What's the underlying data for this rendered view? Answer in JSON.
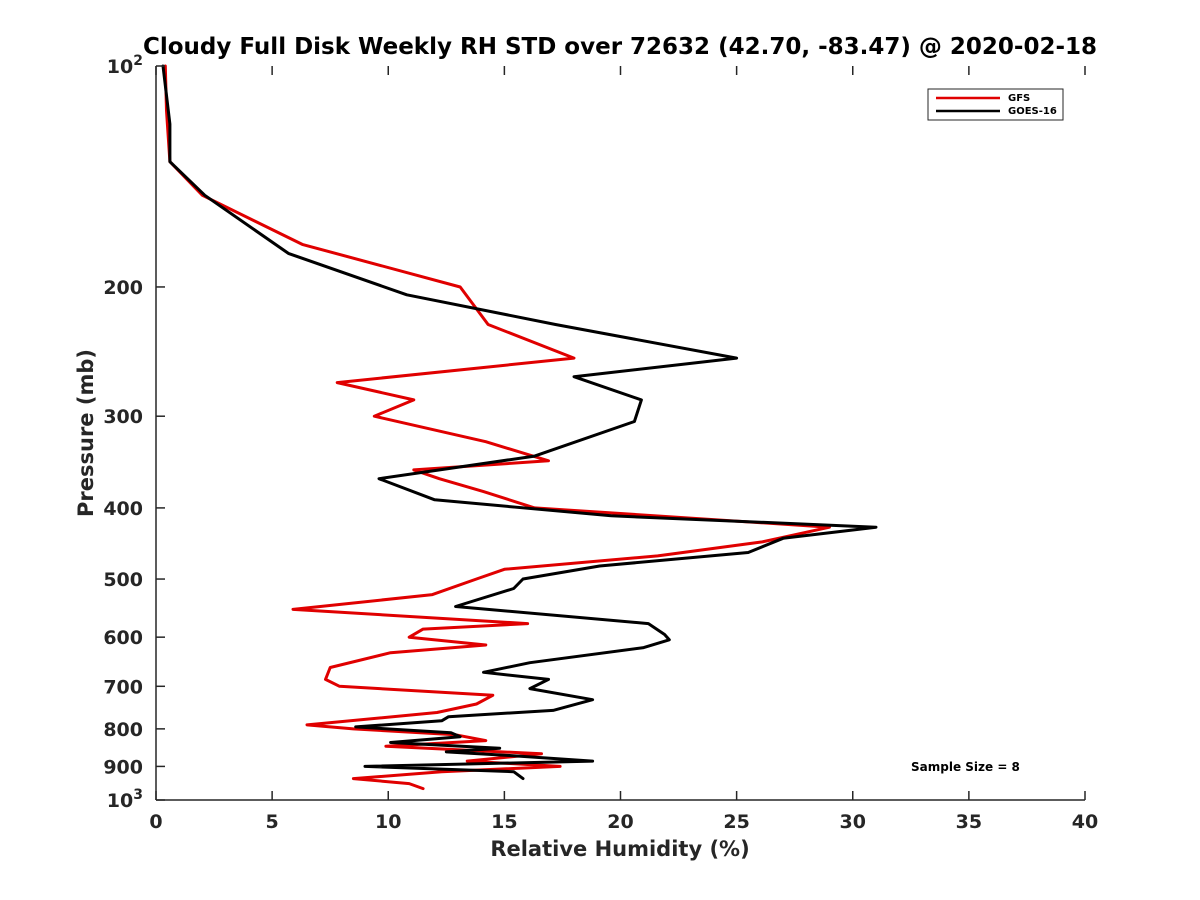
{
  "chart_data": {
    "type": "line",
    "title": "Cloudy Full Disk Weekly RH STD over 72632 (42.70, -83.47) @ 2020-02-18",
    "xlabel": "Relative Humidity (%)",
    "ylabel": "Pressure (mb)",
    "xlim": [
      0,
      40
    ],
    "ylim": [
      100,
      1000
    ],
    "y_scale": "log",
    "y_reversed": true,
    "x_ticks": [
      "0",
      "5",
      "10",
      "15",
      "20",
      "25",
      "30",
      "35",
      "40"
    ],
    "y_ticks": [
      {
        "value": 100,
        "base": "10",
        "exp": "2"
      },
      {
        "value": 200,
        "label": "200"
      },
      {
        "value": 300,
        "label": "300"
      },
      {
        "value": 400,
        "label": "400"
      },
      {
        "value": 500,
        "label": "500"
      },
      {
        "value": 600,
        "label": "600"
      },
      {
        "value": 700,
        "label": "700"
      },
      {
        "value": 800,
        "label": "800"
      },
      {
        "value": 900,
        "label": "900"
      },
      {
        "value": 1000,
        "base": "10",
        "exp": "3"
      }
    ],
    "legend_position": "top-right",
    "grid": false,
    "annotation": "Sample Size = 8",
    "series": [
      {
        "name": "GFS",
        "color": "#e00000",
        "points": [
          [
            0.4,
            100
          ],
          [
            0.45,
            115
          ],
          [
            0.6,
            135
          ],
          [
            2.0,
            150
          ],
          [
            6.3,
            175
          ],
          [
            13.1,
            200
          ],
          [
            14.3,
            225
          ],
          [
            18.0,
            250
          ],
          [
            7.8,
            270
          ],
          [
            11.1,
            285
          ],
          [
            9.4,
            300
          ],
          [
            14.2,
            325
          ],
          [
            16.9,
            345
          ],
          [
            11.1,
            355
          ],
          [
            12.2,
            365
          ],
          [
            14.1,
            380
          ],
          [
            16.3,
            400
          ],
          [
            29.0,
            425
          ],
          [
            26.1,
            445
          ],
          [
            21.6,
            465
          ],
          [
            15.0,
            485
          ],
          [
            13.8,
            500
          ],
          [
            11.9,
            525
          ],
          [
            5.9,
            550
          ],
          [
            16.0,
            575
          ],
          [
            11.5,
            585
          ],
          [
            10.9,
            600
          ],
          [
            14.2,
            615
          ],
          [
            10.1,
            630
          ],
          [
            7.5,
            660
          ],
          [
            7.3,
            685
          ],
          [
            7.9,
            700
          ],
          [
            14.5,
            720
          ],
          [
            13.8,
            740
          ],
          [
            12.1,
            760
          ],
          [
            6.5,
            790
          ],
          [
            8.5,
            800
          ],
          [
            12.9,
            815
          ],
          [
            14.2,
            830
          ],
          [
            9.9,
            845
          ],
          [
            16.6,
            865
          ],
          [
            13.4,
            885
          ],
          [
            17.4,
            900
          ],
          [
            12.3,
            915
          ],
          [
            8.5,
            935
          ],
          [
            10.9,
            950
          ],
          [
            11.5,
            965
          ]
        ]
      },
      {
        "name": "GOES-16",
        "color": "#000000",
        "points": [
          [
            0.3,
            100
          ],
          [
            0.6,
            120
          ],
          [
            0.6,
            135
          ],
          [
            2.1,
            150
          ],
          [
            5.7,
            180
          ],
          [
            10.8,
            205
          ],
          [
            17.2,
            225
          ],
          [
            25.0,
            250
          ],
          [
            18.0,
            265
          ],
          [
            20.9,
            285
          ],
          [
            20.6,
            305
          ],
          [
            16.3,
            340
          ],
          [
            9.6,
            365
          ],
          [
            12.0,
            390
          ],
          [
            19.6,
            410
          ],
          [
            31.0,
            425
          ],
          [
            27.0,
            440
          ],
          [
            25.5,
            460
          ],
          [
            19.1,
            480
          ],
          [
            15.8,
            500
          ],
          [
            15.4,
            515
          ],
          [
            12.9,
            545
          ],
          [
            21.2,
            575
          ],
          [
            21.9,
            595
          ],
          [
            22.1,
            605
          ],
          [
            21.0,
            620
          ],
          [
            16.1,
            650
          ],
          [
            14.1,
            670
          ],
          [
            16.9,
            685
          ],
          [
            16.1,
            705
          ],
          [
            18.8,
            730
          ],
          [
            17.1,
            755
          ],
          [
            12.6,
            770
          ],
          [
            12.3,
            780
          ],
          [
            8.6,
            795
          ],
          [
            12.7,
            810
          ],
          [
            13.1,
            820
          ],
          [
            10.1,
            835
          ],
          [
            14.8,
            850
          ],
          [
            12.5,
            860
          ],
          [
            15.3,
            870
          ],
          [
            18.8,
            885
          ],
          [
            9.0,
            900
          ],
          [
            15.4,
            915
          ],
          [
            15.8,
            935
          ]
        ]
      }
    ]
  }
}
